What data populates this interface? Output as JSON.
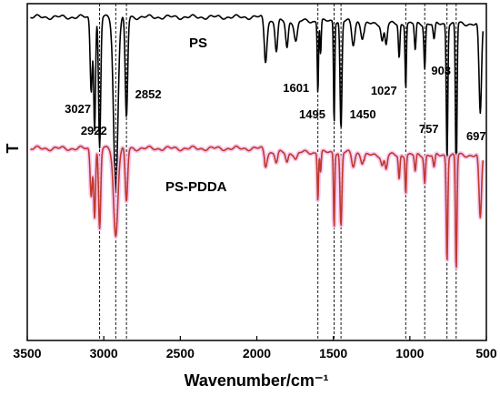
{
  "chart_data": {
    "type": "line",
    "xlabel": "Wavenumber/cm⁻¹",
    "ylabel": "T",
    "xlim": [
      3500,
      500
    ],
    "xreversed": true,
    "xticks": [
      3500,
      3000,
      2500,
      2000,
      1500,
      1000,
      500
    ],
    "grid": false,
    "reference_lines": [
      3027,
      2922,
      2852,
      1601,
      1495,
      1450,
      1027,
      903,
      757,
      697
    ],
    "series": [
      {
        "name": "PS",
        "color": "#000000",
        "baseline": 0.04,
        "peaks": [
          [
            3082,
            0.22,
            7
          ],
          [
            3060,
            0.33,
            6
          ],
          [
            3027,
            0.39,
            7
          ],
          [
            2922,
            0.52,
            14
          ],
          [
            2852,
            0.3,
            8
          ],
          [
            1943,
            0.12,
            9
          ],
          [
            1872,
            0.09,
            8
          ],
          [
            1803,
            0.08,
            8
          ],
          [
            1745,
            0.06,
            10
          ],
          [
            1601,
            0.21,
            4
          ],
          [
            1583,
            0.1,
            4
          ],
          [
            1495,
            0.3,
            4
          ],
          [
            1450,
            0.32,
            6
          ],
          [
            1370,
            0.07,
            10
          ],
          [
            1310,
            0.05,
            10
          ],
          [
            1180,
            0.05,
            8
          ],
          [
            1155,
            0.06,
            7
          ],
          [
            1070,
            0.1,
            5
          ],
          [
            1027,
            0.19,
            4
          ],
          [
            965,
            0.08,
            5
          ],
          [
            903,
            0.13,
            5
          ],
          [
            842,
            0.05,
            6
          ],
          [
            757,
            0.4,
            5
          ],
          [
            697,
            0.48,
            5
          ],
          [
            540,
            0.27,
            8
          ]
        ]
      },
      {
        "name": "PS-PDDA",
        "color": "#c0392b",
        "highlight": "#f4c6ef",
        "baseline": 0.43,
        "peaks": [
          [
            3082,
            0.14,
            7
          ],
          [
            3060,
            0.2,
            6
          ],
          [
            3027,
            0.24,
            7
          ],
          [
            2922,
            0.26,
            14
          ],
          [
            2852,
            0.16,
            8
          ],
          [
            1943,
            0.04,
            9
          ],
          [
            1872,
            0.03,
            8
          ],
          [
            1803,
            0.03,
            8
          ],
          [
            1745,
            0.02,
            10
          ],
          [
            1601,
            0.14,
            4
          ],
          [
            1583,
            0.06,
            4
          ],
          [
            1495,
            0.22,
            4
          ],
          [
            1450,
            0.22,
            6
          ],
          [
            1370,
            0.04,
            10
          ],
          [
            1310,
            0.03,
            10
          ],
          [
            1180,
            0.03,
            8
          ],
          [
            1155,
            0.04,
            7
          ],
          [
            1070,
            0.07,
            5
          ],
          [
            1027,
            0.11,
            4
          ],
          [
            965,
            0.05,
            5
          ],
          [
            903,
            0.08,
            5
          ],
          [
            842,
            0.04,
            6
          ],
          [
            757,
            0.31,
            5
          ],
          [
            697,
            0.34,
            5
          ],
          [
            540,
            0.19,
            8
          ]
        ]
      }
    ],
    "peak_labels": [
      {
        "text": "3027",
        "x": 3027,
        "row": 0
      },
      {
        "text": "2922",
        "x": 2922,
        "row": 1
      },
      {
        "text": "2852",
        "x": 2852,
        "row": 2
      },
      {
        "text": "1601",
        "x": 1601,
        "row": 3
      },
      {
        "text": "1495",
        "x": 1495,
        "row": 4
      },
      {
        "text": "1450",
        "x": 1450,
        "row": 5
      },
      {
        "text": "1027",
        "x": 1027,
        "row": 6
      },
      {
        "text": "903",
        "x": 903,
        "row": 7
      },
      {
        "text": "757",
        "x": 757,
        "row": 8
      },
      {
        "text": "697",
        "x": 697,
        "row": 9
      }
    ]
  }
}
